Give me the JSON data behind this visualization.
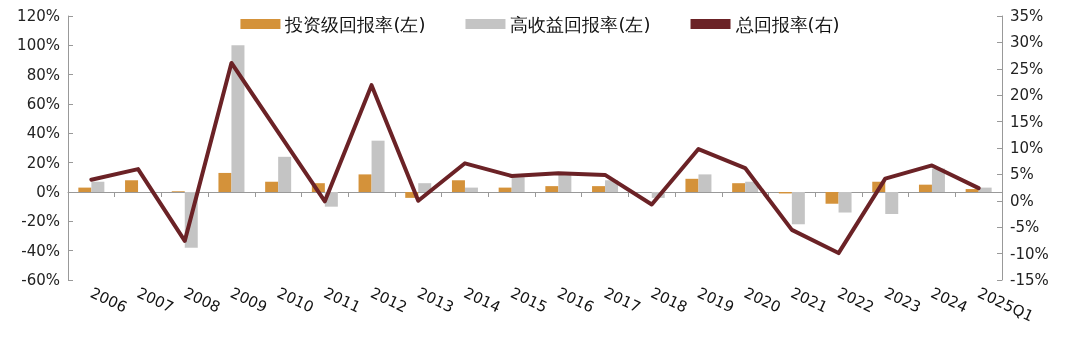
{
  "chart_data": {
    "type": "bar",
    "categories": [
      "2006",
      "2007",
      "2008",
      "2009",
      "2010",
      "2011",
      "2012",
      "2013",
      "2014",
      "2015",
      "2016",
      "2017",
      "2018",
      "2019",
      "2020",
      "2021",
      "2022",
      "2023",
      "2024",
      "2025Q1"
    ],
    "series": [
      {
        "name": "投资级回报率(左)",
        "color": "#d4923a",
        "values": [
          3,
          8,
          0.5,
          13,
          7,
          6,
          12,
          -4,
          8,
          3,
          4,
          4,
          0,
          9,
          6,
          -1,
          -8,
          7,
          5,
          2
        ]
      },
      {
        "name": "高收益回报率(左)",
        "color": "#c4c4c4",
        "values": [
          7,
          null,
          -38,
          100,
          24,
          -10,
          35,
          6,
          3,
          10,
          12,
          8,
          -4,
          12,
          7,
          -22,
          -14,
          -15,
          16,
          3
        ]
      },
      {
        "name": "总回报率(右)",
        "type": "line",
        "axis": "y2",
        "color": "#6b2226",
        "values": [
          4,
          6,
          -7.6,
          26.1,
          13,
          -0.1,
          21.9,
          0,
          7.1,
          4.7,
          5.2,
          4.9,
          -0.7,
          9.8,
          6.2,
          -5.5,
          -9.9,
          4.2,
          6.7,
          2.4
        ]
      }
    ],
    "ylim": [
      -60,
      120
    ],
    "yticks": [
      {
        "value": -60,
        "label": "-60%"
      },
      {
        "value": -40,
        "label": "-40%"
      },
      {
        "value": -20,
        "label": "-20%"
      },
      {
        "value": 0,
        "label": "0%"
      },
      {
        "value": 20,
        "label": "20%"
      },
      {
        "value": 40,
        "label": "40%"
      },
      {
        "value": 60,
        "label": "60%"
      },
      {
        "value": 80,
        "label": "80%"
      },
      {
        "value": 100,
        "label": "100%"
      },
      {
        "value": 120,
        "label": "120%"
      }
    ],
    "y2lim": [
      -15,
      35
    ],
    "y2ticks": [
      {
        "value": -15,
        "label": "-15%"
      },
      {
        "value": -10,
        "label": "-10%"
      },
      {
        "value": -5,
        "label": "-5%"
      },
      {
        "value": 0,
        "label": "0%"
      },
      {
        "value": 5,
        "label": "5%"
      },
      {
        "value": 10,
        "label": "10%"
      },
      {
        "value": 15,
        "label": "15%"
      },
      {
        "value": 20,
        "label": "20%"
      },
      {
        "value": 25,
        "label": "25%"
      },
      {
        "value": 30,
        "label": "30%"
      },
      {
        "value": 35,
        "label": "35%"
      }
    ],
    "legend": "top",
    "marker": "none",
    "line_style": "solid"
  }
}
